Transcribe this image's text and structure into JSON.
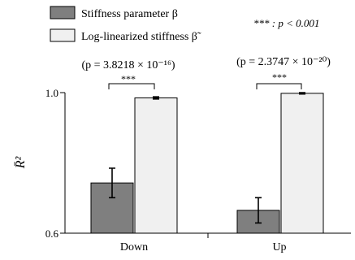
{
  "chart_data": {
    "type": "bar",
    "categories": [
      "Down",
      "Up"
    ],
    "ylim": [
      0.6,
      1.0
    ],
    "yticks": [
      "0.6",
      "1.0"
    ],
    "ylabel": "R̄²",
    "series": [
      {
        "name": "Stiffness parameter β",
        "color": "#7f7f7f",
        "values": [
          0.743,
          0.665
        ],
        "errors": [
          0.042,
          0.036
        ]
      },
      {
        "name": "Log-linearized stiffness β̃",
        "color": "#f0f0f0",
        "values": [
          0.985,
          0.998
        ],
        "errors": [
          0.003,
          0.002
        ]
      }
    ],
    "significance_legend": "*** : p < 0.001",
    "annotations": [
      {
        "category": "Down",
        "stars": "***",
        "p_text": "(p = 3.8218 × 10⁻¹⁶)"
      },
      {
        "category": "Up",
        "stars": "***",
        "p_text": "(p = 2.3747 × 10⁻²⁰)"
      }
    ]
  }
}
